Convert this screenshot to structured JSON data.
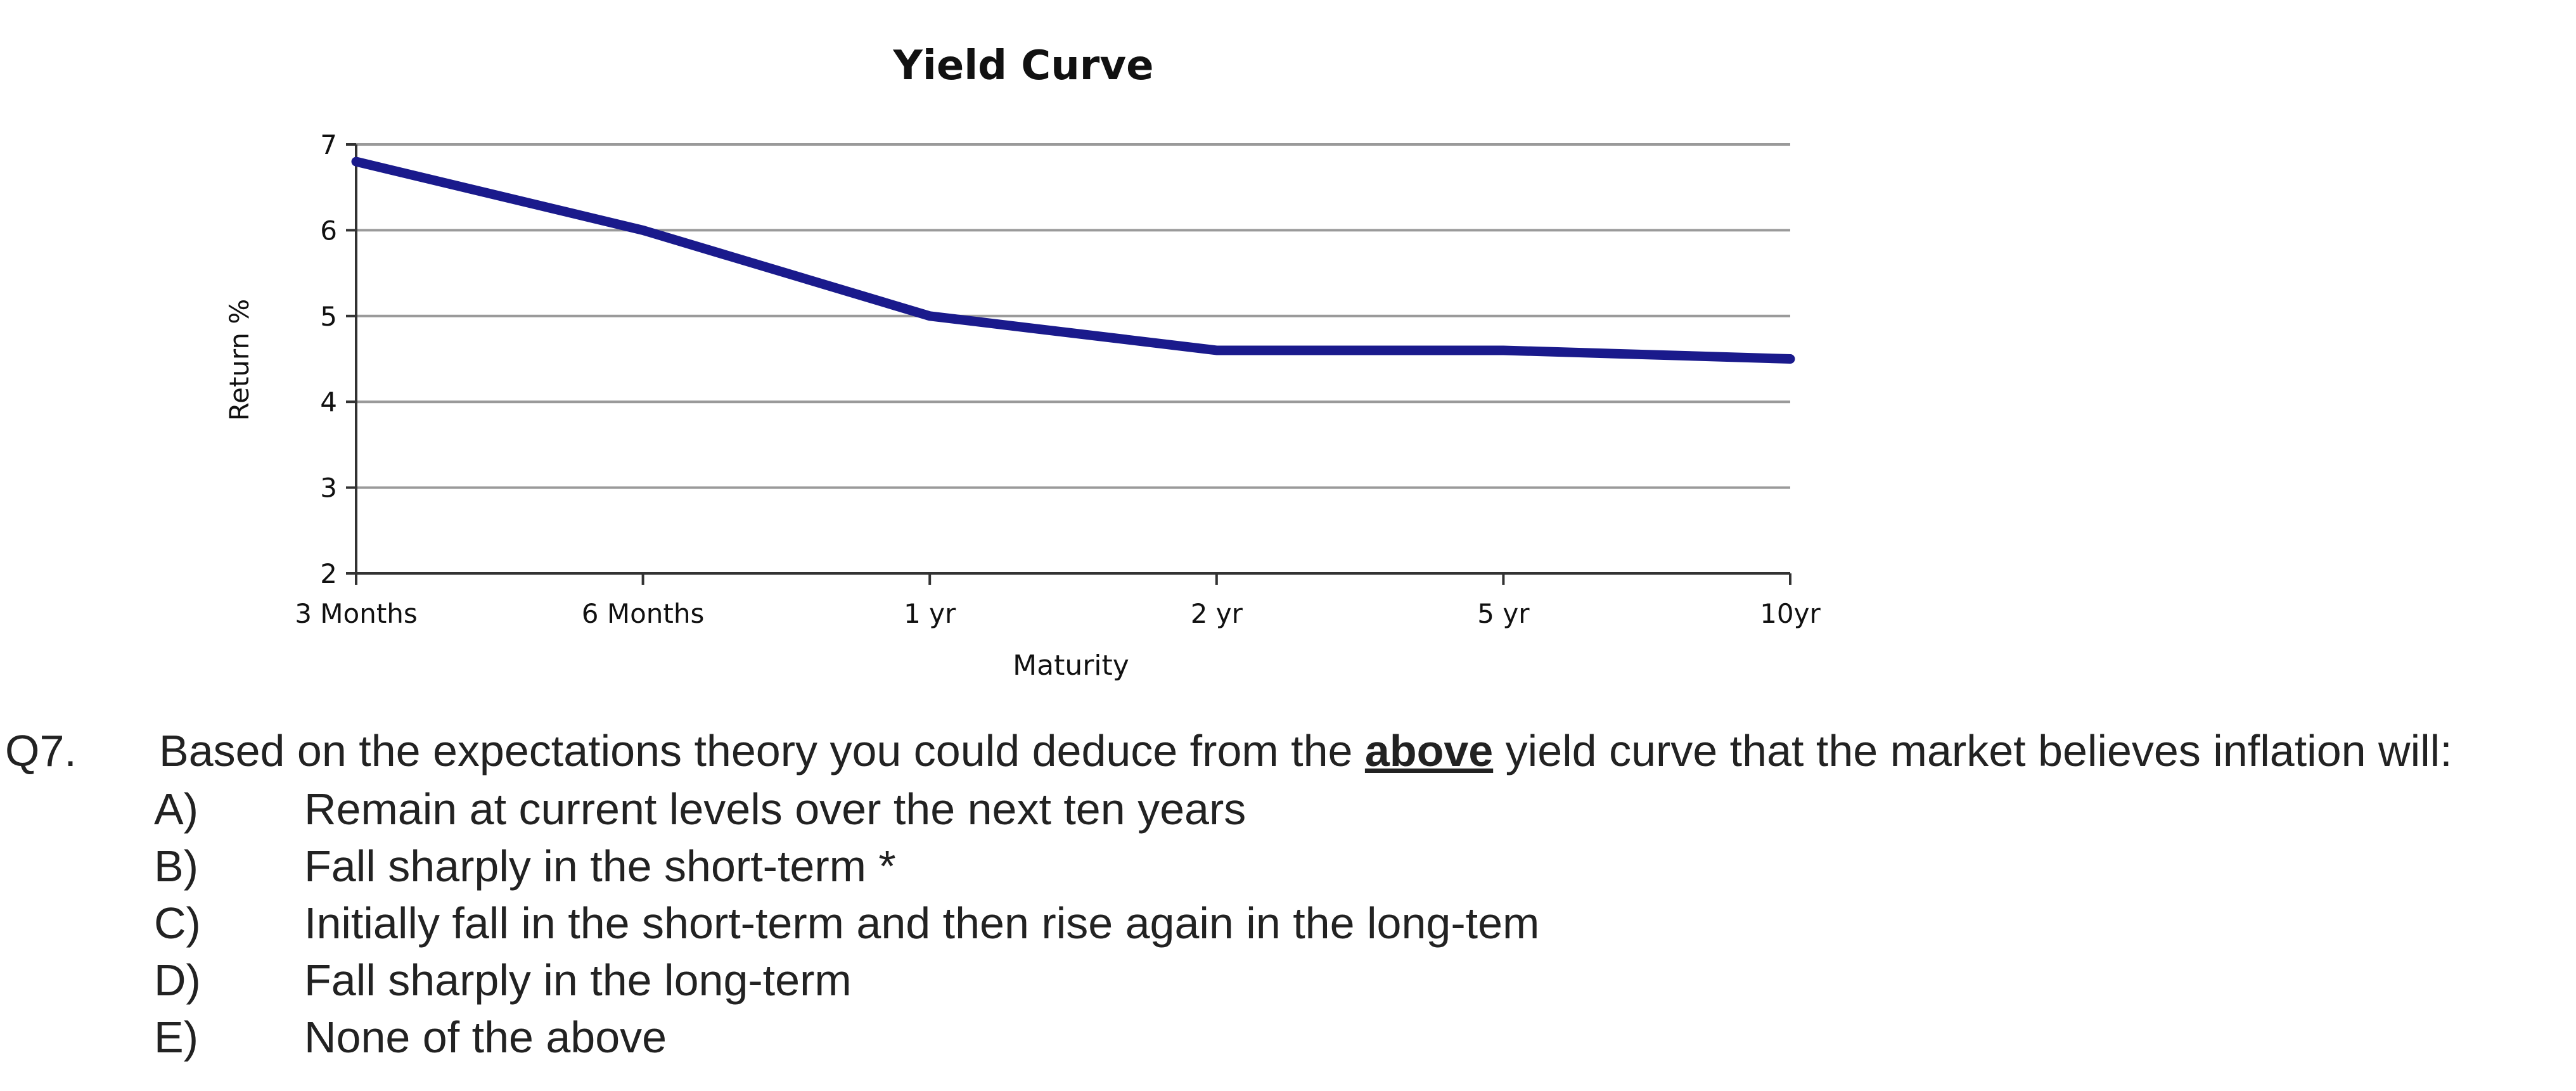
{
  "chart_data": {
    "type": "line",
    "title": "Yield Curve",
    "xlabel": "Maturity",
    "ylabel": "Return %",
    "categories": [
      "3 Months",
      "6 Months",
      "1 yr",
      "2 yr",
      "5 yr",
      "10yr"
    ],
    "series": [
      {
        "values": [
          6.8,
          6.0,
          5.0,
          4.6,
          4.6,
          4.5
        ],
        "color": "#1a1a8c"
      }
    ],
    "ylim": [
      2,
      7
    ],
    "yticks": [
      2,
      3,
      4,
      5,
      6,
      7
    ],
    "grid": true,
    "legend": "none"
  },
  "question": {
    "number": "Q7.",
    "text_before": "Based on the expectations theory you could deduce from the ",
    "emphasis": "above",
    "text_after": " yield curve that the market believes inflation will:",
    "options": [
      {
        "letter": "A)",
        "text": "Remain at current levels over the next ten years"
      },
      {
        "letter": "B)",
        "text": "Fall sharply in the short-term *"
      },
      {
        "letter": "C)",
        "text": "Initially fall in the short-term and then rise again in the long-tem"
      },
      {
        "letter": "D)",
        "text": "Fall sharply in the long-term"
      },
      {
        "letter": "E)",
        "text": "None of the above"
      }
    ]
  }
}
